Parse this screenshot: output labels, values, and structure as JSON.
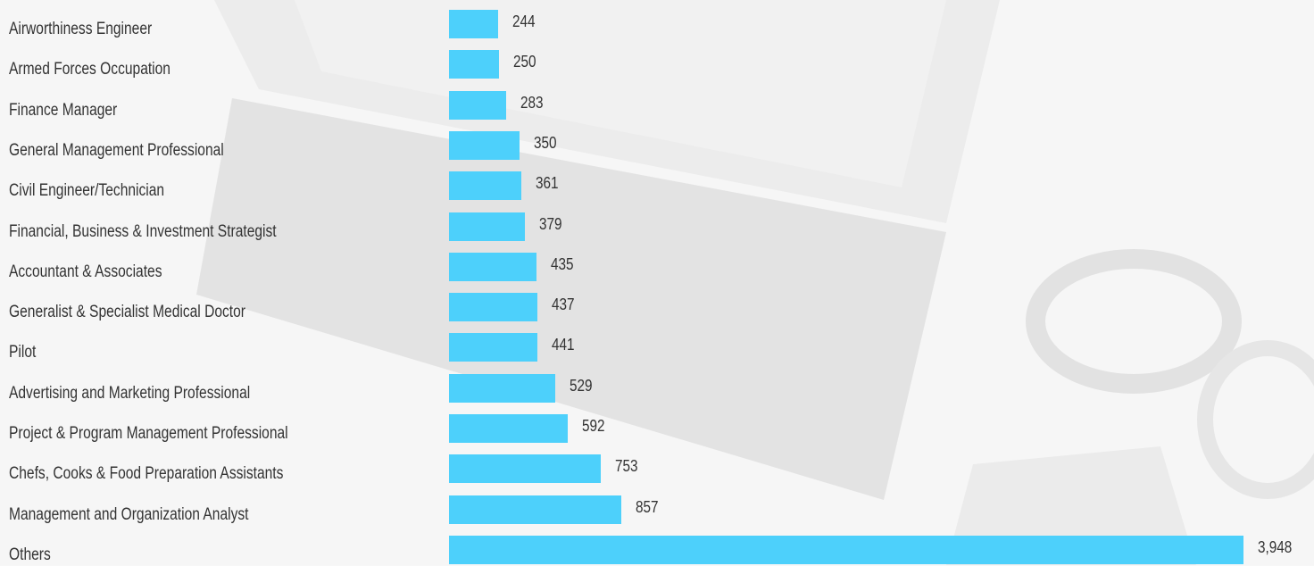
{
  "chart_data": {
    "type": "bar",
    "orientation": "horizontal",
    "categories": [
      "Airworthiness Engineer",
      "Armed Forces Occupation",
      "Finance Manager",
      "General Management Professional",
      "Civil Engineer/Technician",
      "Financial, Business & Investment Strategist",
      "Accountant & Associates",
      "Generalist & Specialist Medical Doctor",
      "Pilot",
      "Advertising and Marketing Professional",
      "Project & Program Management Professional",
      "Chefs, Cooks & Food Preparation Assistants",
      "Management and Organization Analyst",
      "Others"
    ],
    "values": [
      244,
      250,
      283,
      350,
      361,
      379,
      435,
      437,
      441,
      529,
      592,
      753,
      857,
      3948
    ],
    "value_labels": [
      "244",
      "250",
      "283",
      "350",
      "361",
      "379",
      "435",
      "437",
      "441",
      "529",
      "592",
      "753",
      "857",
      "3,948"
    ],
    "bar_color": "#4dd0fb",
    "grid": false,
    "legend": "none"
  }
}
